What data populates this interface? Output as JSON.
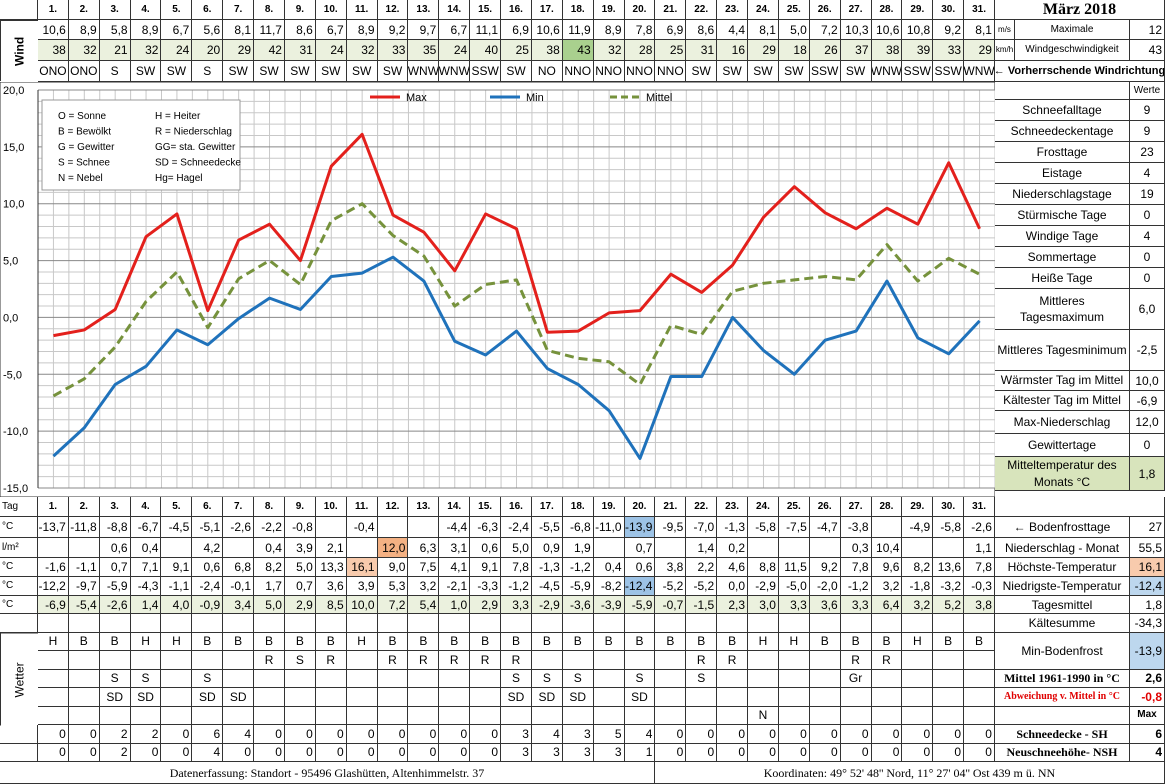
{
  "header": {
    "title": "März 2018",
    "wind_label": "Wind",
    "unit_ms": "m/s",
    "unit_kmh": "km/h",
    "max_label_1": "Maximale",
    "max_label_2": "Windgeschwindigkeit",
    "max_ms": "12",
    "max_kmh": "43",
    "direction_label": "← Vorherrschende Windrichtung"
  },
  "wind": {
    "ms": [
      "10,6",
      "8,9",
      "5,8",
      "8,9",
      "6,7",
      "5,6",
      "8,1",
      "11,7",
      "8,6",
      "6,7",
      "8,9",
      "9,2",
      "9,7",
      "6,7",
      "11,1",
      "6,9",
      "10,6",
      "11,9",
      "8,9",
      "7,8",
      "6,9",
      "8,6",
      "4,4",
      "8,1",
      "5,0",
      "7,2",
      "10,3",
      "10,6",
      "10,8",
      "9,2",
      "8,1"
    ],
    "kmh": [
      "38",
      "32",
      "21",
      "32",
      "24",
      "20",
      "29",
      "42",
      "31",
      "24",
      "32",
      "33",
      "35",
      "24",
      "40",
      "25",
      "38",
      "43",
      "32",
      "28",
      "25",
      "31",
      "16",
      "29",
      "18",
      "26",
      "37",
      "38",
      "39",
      "33",
      "29"
    ],
    "dir": [
      "ONO",
      "ONO",
      "S",
      "SW",
      "SW",
      "S",
      "SW",
      "SW",
      "SW",
      "SW",
      "SW",
      "SW",
      "WNW",
      "WNW",
      "SSW",
      "SW",
      "NO",
      "NNO",
      "NNO",
      "NNO",
      "NNO",
      "SW",
      "SW",
      "SW",
      "SW",
      "SSW",
      "SW",
      "WNW",
      "SSW",
      "SSW",
      "WNW"
    ]
  },
  "chart_data": {
    "type": "line",
    "grid": true,
    "categories": [
      "1.",
      "2.",
      "3.",
      "4.",
      "5.",
      "6.",
      "7.",
      "8.",
      "9.",
      "10.",
      "11.",
      "12.",
      "13.",
      "14.",
      "15.",
      "16.",
      "17.",
      "18.",
      "19.",
      "20.",
      "21.",
      "22.",
      "23.",
      "24.",
      "25.",
      "26.",
      "27.",
      "28.",
      "29.",
      "30.",
      "31."
    ],
    "ylim": [
      -15,
      20
    ],
    "yticks": [
      {
        "value": -15,
        "label": "-15,0"
      },
      {
        "value": -10,
        "label": "-10,0"
      },
      {
        "value": -5,
        "label": "-5,0"
      },
      {
        "value": 0,
        "label": "0,0"
      },
      {
        "value": 5,
        "label": "5,0"
      },
      {
        "value": 10,
        "label": "10,0"
      },
      {
        "value": 15,
        "label": "15,0"
      },
      {
        "value": 20,
        "label": "20,0"
      }
    ],
    "series": [
      {
        "name": "Max",
        "color": "#e3201c",
        "dashed": false,
        "values": [
          -1.6,
          -1.1,
          0.7,
          7.1,
          9.1,
          0.6,
          6.8,
          8.2,
          5.0,
          13.3,
          16.1,
          9.0,
          7.5,
          4.1,
          9.1,
          7.8,
          -1.3,
          -1.2,
          0.4,
          0.6,
          3.8,
          2.2,
          4.6,
          8.8,
          11.5,
          9.2,
          7.8,
          9.6,
          8.2,
          13.6,
          7.8
        ],
        "value_labels": [
          "-1,6",
          "-1,1",
          "0,7",
          "7,1",
          "9,1",
          "0,6",
          "6,8",
          "8,2",
          "5,0",
          "13,3",
          "16,1",
          "9,0",
          "7,5",
          "4,1",
          "9,1",
          "7,8",
          "-1,3",
          "-1,2",
          "0,4",
          "0,6",
          "3,8",
          "2,2",
          "4,6",
          "8,8",
          "11,5",
          "9,2",
          "7,8",
          "9,6",
          "8,2",
          "13,6",
          "7,8"
        ]
      },
      {
        "name": "Min",
        "color": "#1f72bb",
        "dashed": false,
        "values": [
          -12.2,
          -9.7,
          -5.9,
          -4.3,
          -1.1,
          -2.4,
          -0.1,
          1.7,
          0.7,
          3.6,
          3.9,
          5.3,
          3.2,
          -2.1,
          -3.3,
          -1.2,
          -4.5,
          -5.9,
          -8.2,
          -12.4,
          -5.2,
          -5.2,
          0.0,
          -2.9,
          -5.0,
          -2.0,
          -1.2,
          3.2,
          -1.8,
          -3.2,
          -0.3
        ],
        "value_labels": [
          "-12,2",
          "-9,7",
          "-5,9",
          "-4,3",
          "-1,1",
          "-2,4",
          "-0,1",
          "1,7",
          "0,7",
          "3,6",
          "3,9",
          "5,3",
          "3,2",
          "-2,1",
          "-3,3",
          "-1,2",
          "-4,5",
          "-5,9",
          "-8,2",
          "-12,4",
          "-5,2",
          "-5,2",
          "0,0",
          "-2,9",
          "-5,0",
          "-2,0",
          "-1,2",
          "3,2",
          "-1,8",
          "-3,2",
          "-0,3"
        ]
      },
      {
        "name": "Mittel",
        "color": "#76923c",
        "dashed": true,
        "values": [
          -6.9,
          -5.4,
          -2.6,
          1.4,
          4.0,
          -0.9,
          3.4,
          5.0,
          2.9,
          8.5,
          10.0,
          7.2,
          5.4,
          1.0,
          2.9,
          3.3,
          -2.9,
          -3.6,
          -3.9,
          -5.9,
          -0.7,
          -1.5,
          2.3,
          3.0,
          3.3,
          3.6,
          3.3,
          6.4,
          3.2,
          5.2,
          3.8
        ],
        "value_labels": [
          "-6,9",
          "-5,4",
          "-2,6",
          "1,4",
          "4,0",
          "-0,9",
          "3,4",
          "5,0",
          "2,9",
          "8,5",
          "10,0",
          "7,2",
          "5,4",
          "1,0",
          "2,9",
          "3,3",
          "-2,9",
          "-3,6",
          "-3,9",
          "-5,9",
          "-0,7",
          "-1,5",
          "2,3",
          "3,0",
          "3,3",
          "3,6",
          "3,3",
          "6,4",
          "3,2",
          "5,2",
          "3,8"
        ]
      }
    ],
    "codes": [
      "O = Sonne",
      "H = Heiter",
      "B = Bewölkt",
      "R = Niederschlag",
      "G = Gewitter",
      "GG= sta. Gewitter",
      "S = Schnee",
      "SD = Schneedecke",
      "N = Nebel",
      "Hg= Hagel"
    ]
  },
  "stats": {
    "header": "Werte",
    "rows": [
      {
        "label": "Schneefalltage",
        "value": "9"
      },
      {
        "label": "Schneedeckentage",
        "value": "9"
      },
      {
        "label": "Frosttage",
        "value": "23"
      },
      {
        "label": "Eistage",
        "value": "4"
      },
      {
        "label": "Niederschlagstage",
        "value": "19"
      },
      {
        "label": "Stürmische Tage",
        "value": "0"
      },
      {
        "label": "Windige Tage",
        "value": "4"
      },
      {
        "label": "Sommertage",
        "value": "0"
      },
      {
        "label": "Heiße Tage",
        "value": "0"
      },
      {
        "label": "Mittleres Tagesmaximum",
        "value": "6,0"
      },
      {
        "label": "Mittleres Tagesminimum",
        "value": "-2,5"
      },
      {
        "label": "Wärmster Tag im Mittel",
        "value": "10,0"
      },
      {
        "label": "Kältester Tag im Mittel",
        "value": "-6,9"
      },
      {
        "label": "Max-Niederschlag",
        "value": "12,0"
      },
      {
        "label": "Gewittertage",
        "value": "0"
      },
      {
        "label": "Mitteltemperatur des Monats °C",
        "value": "1,8"
      }
    ]
  },
  "table": {
    "tag_label": "Tag",
    "unit_c": "°C",
    "unit_l": "l/m²",
    "weather_label": "Wetter",
    "bodenfrost": [
      "-13,7",
      "-11,8",
      "-8,8",
      "-6,7",
      "-4,5",
      "-5,1",
      "-2,6",
      "-2,2",
      "-0,8",
      null,
      "-0,4",
      null,
      null,
      "-4,4",
      "-6,3",
      "-2,4",
      "-5,5",
      "-6,8",
      "-11,0",
      "-13,9",
      "-9,5",
      "-7,0",
      "-1,3",
      "-5,8",
      "-7,5",
      "-4,7",
      "-3,8",
      null,
      "-4,9",
      "-5,8",
      "-2,6"
    ],
    "niederschlag": [
      null,
      null,
      "0,6",
      "0,4",
      null,
      "4,2",
      null,
      "0,4",
      "3,9",
      "2,1",
      null,
      "12,0",
      "6,3",
      "3,1",
      "0,6",
      "5,0",
      "0,9",
      "1,9",
      null,
      "0,7",
      null,
      "1,4",
      "0,2",
      null,
      null,
      null,
      "0,3",
      "10,4",
      null,
      null,
      "1,1"
    ],
    "weather": [
      [
        "H",
        "B",
        "B",
        "H",
        "H",
        "B",
        "B",
        "B",
        "B",
        "B",
        "H",
        "B",
        "B",
        "B",
        "B",
        "B",
        "B",
        "B",
        "B",
        "B",
        "B",
        "B",
        "B",
        "H",
        "H",
        "B",
        "B",
        "B",
        "H",
        "B",
        "B"
      ],
      [
        null,
        null,
        null,
        null,
        null,
        null,
        null,
        "R",
        "S",
        "R",
        null,
        "R",
        "R",
        "R",
        "R",
        "R",
        null,
        null,
        null,
        null,
        null,
        "R",
        "R",
        null,
        null,
        null,
        "R",
        "R",
        null,
        null,
        null
      ],
      [
        null,
        null,
        "S",
        "S",
        null,
        "S",
        null,
        null,
        null,
        null,
        null,
        null,
        null,
        null,
        null,
        "S",
        "S",
        "S",
        null,
        "S",
        null,
        "S",
        null,
        null,
        null,
        null,
        "Gr",
        null,
        null,
        null,
        null
      ],
      [
        null,
        null,
        "SD",
        "SD",
        null,
        "SD",
        "SD",
        null,
        null,
        null,
        null,
        null,
        null,
        null,
        null,
        "SD",
        "SD",
        "SD",
        null,
        "SD",
        null,
        null,
        null,
        null,
        null,
        null,
        null,
        null,
        null,
        null,
        null
      ],
      [
        null,
        null,
        null,
        null,
        null,
        null,
        null,
        null,
        null,
        null,
        null,
        null,
        null,
        null,
        null,
        null,
        null,
        null,
        null,
        null,
        null,
        null,
        null,
        "N",
        null,
        null,
        null,
        null,
        null,
        null,
        null
      ]
    ],
    "schneedecke": [
      "0",
      "0",
      "2",
      "2",
      "0",
      "6",
      "4",
      "0",
      "0",
      "0",
      "0",
      "0",
      "0",
      "0",
      "0",
      "3",
      "4",
      "3",
      "5",
      "4",
      "0",
      "0",
      "0",
      "0",
      "0",
      "0",
      "0",
      "0",
      "0",
      "0",
      "0"
    ],
    "neuschnee": [
      "0",
      "0",
      "2",
      "0",
      "0",
      "4",
      "0",
      "0",
      "0",
      "0",
      "0",
      "0",
      "0",
      "0",
      "0",
      "3",
      "3",
      "3",
      "3",
      "1",
      "0",
      "0",
      "0",
      "0",
      "0",
      "0",
      "0",
      "0",
      "0",
      "0",
      "0"
    ],
    "highlights": [
      {
        "path": "wind.kmh.17",
        "color": "#a9d08e"
      },
      {
        "path": "table.niederschlag.11",
        "color": "#f4b183"
      },
      {
        "path": "chart_data.series.0.value_labels.10",
        "color": "#f8cbad"
      },
      {
        "path": "chart_data.series.1.value_labels.19",
        "color": "#9dc3e6"
      },
      {
        "path": "table.bodenfrost.19",
        "color": "#9dc3e6"
      }
    ]
  },
  "summary": [
    {
      "label": "← Bodenfrosttage",
      "value": "27"
    },
    {
      "label": "Niederschlag - Monat",
      "value": "55,5"
    },
    {
      "label": "Höchste-Temperatur",
      "value": "16,1",
      "background": "#f8cbad"
    },
    {
      "label": "Niedrigste-Temperatur",
      "value": "-12,4",
      "background": "#bdd7ee"
    },
    {
      "label": "Tagesmittel",
      "value": "1,8"
    },
    {
      "label": "Kältesumme",
      "value": "-34,3"
    },
    {
      "label": "Min-Bodenfrost",
      "value": "-13,9",
      "background": "#bdd7ee"
    },
    {
      "label": "Mittel 1961-1990 in °C",
      "value": "2,6",
      "bold": true
    },
    {
      "label": "Abweichung v. Mittel in °C",
      "value": "-0,8",
      "bold": true,
      "color": "#e00000"
    },
    {
      "label": "Max",
      "bold": true
    },
    {
      "label": "Schneedecke -   SH",
      "value": "6",
      "bold": true
    },
    {
      "label": "Neuschneehöhe- NSH",
      "value": "4",
      "bold": true
    }
  ],
  "footer": {
    "left": "Datenerfassung:  Standort -  95496  Glashütten, Altenhimmelstr. 37",
    "right": "Koordinaten:  49° 52' 48'' Nord,   11° 27' 04'' Ost   439 m ü. NN"
  }
}
